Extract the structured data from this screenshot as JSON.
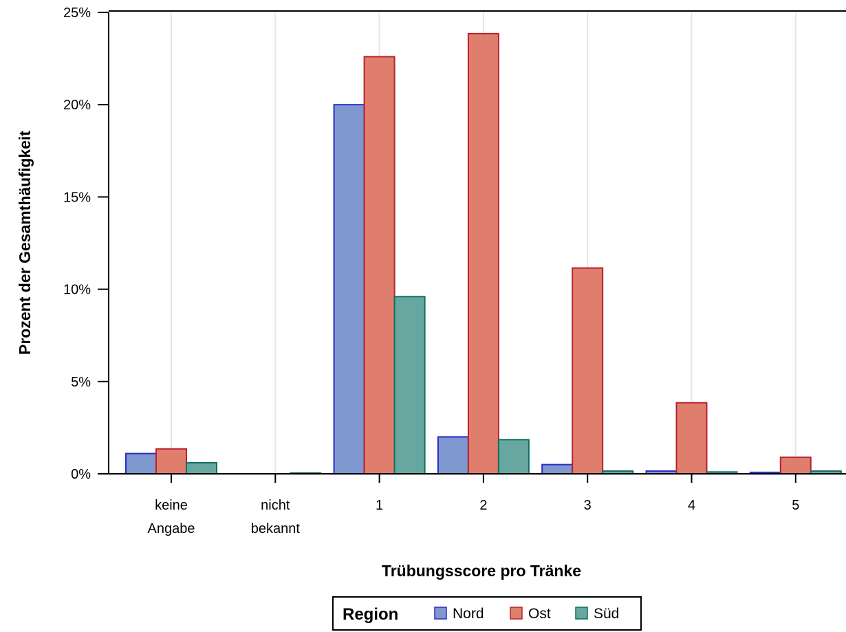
{
  "chart_data": {
    "type": "bar",
    "xlabel": "Trübungsscore pro Tränke",
    "ylabel": "Prozent der Gesamthäufigkeit",
    "categories": [
      [
        "keine",
        "Angabe"
      ],
      [
        "nicht",
        "bekannt"
      ],
      [
        "1"
      ],
      [
        "2"
      ],
      [
        "3"
      ],
      [
        "4"
      ],
      [
        "5"
      ]
    ],
    "ylim": [
      0,
      25
    ],
    "yticks": [
      0,
      5,
      10,
      15,
      20,
      25
    ],
    "ytick_labels": [
      "0%",
      "5%",
      "10%",
      "15%",
      "20%",
      "25%"
    ],
    "grid": "vertical",
    "legend": {
      "title": "Region",
      "placement": "bottom-center"
    },
    "series": [
      {
        "name": "Nord",
        "color": "#7f98d0",
        "stroke": "#2a2ac8",
        "values": [
          1.1,
          0.0,
          20.0,
          2.0,
          0.5,
          0.15,
          0.08
        ]
      },
      {
        "name": "Ost",
        "color": "#e07e6e",
        "stroke": "#b8202f",
        "values": [
          1.35,
          0.0,
          22.6,
          23.85,
          11.15,
          3.85,
          0.9
        ]
      },
      {
        "name": "Süd",
        "color": "#66a8a0",
        "stroke": "#0c6e60",
        "values": [
          0.6,
          0.05,
          9.6,
          1.85,
          0.15,
          0.1,
          0.15
        ]
      }
    ]
  }
}
